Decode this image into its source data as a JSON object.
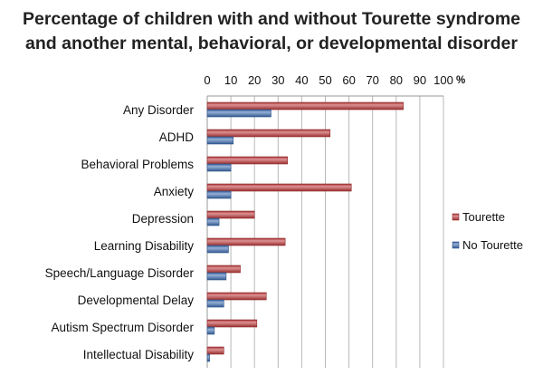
{
  "chart_data": {
    "type": "bar",
    "orientation": "horizontal",
    "title_lines": [
      "Percentage of children with and without Tourette syndrome",
      "and another mental, behavioral, or developmental disorder"
    ],
    "xaxis_position": "top",
    "xunit": "%",
    "xlim": [
      0,
      100
    ],
    "xticks": [
      "0",
      "10",
      "20",
      "30",
      "40",
      "50",
      "60",
      "70",
      "80",
      "90",
      "100"
    ],
    "grid": true,
    "legend_position": "right",
    "categories": [
      "Any Disorder",
      "ADHD",
      "Behavioral Problems",
      "Anxiety",
      "Depression",
      "Learning Disability",
      "Speech/Language Disorder",
      "Developmental Delay",
      "Autism Spectrum Disorder",
      "Intellectual Disability"
    ],
    "series": [
      {
        "name": "Tourette",
        "color": "#c0393b",
        "values": [
          83,
          52,
          34,
          61,
          20,
          33,
          14,
          25,
          21,
          7
        ]
      },
      {
        "name": "No Tourette",
        "color": "#3f6fb5",
        "values": [
          27,
          11,
          10,
          10,
          5,
          9,
          8,
          7,
          3,
          1
        ]
      }
    ]
  }
}
